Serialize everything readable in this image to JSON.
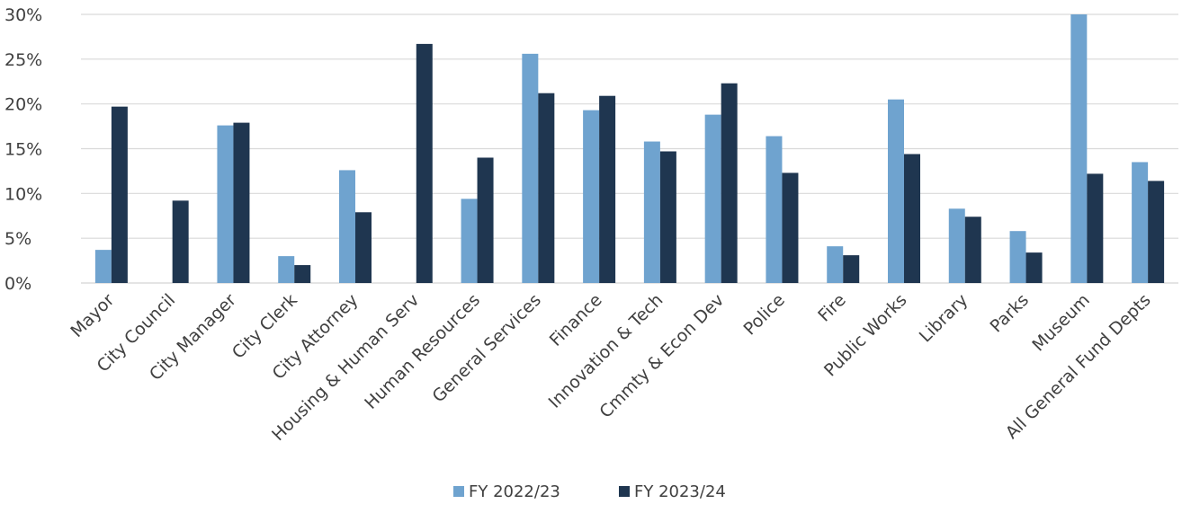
{
  "chart_data": {
    "type": "bar",
    "title": "",
    "xlabel": "",
    "ylabel": "",
    "ylim": [
      0,
      0.3
    ],
    "yticks": [
      "0%",
      "5%",
      "10%",
      "15%",
      "20%",
      "25%",
      "30%"
    ],
    "grid": true,
    "legend_position": "bottom",
    "categories": [
      "Mayor",
      "City Council",
      "City Manager",
      "City Clerk",
      "City Attorney",
      "Housing & Human Serv",
      "Human Resources",
      "General Services",
      "Finance",
      "Innovation & Tech",
      "Cmmty & Econ Dev",
      "Police",
      "Fire",
      "Public Works",
      "Library",
      "Parks",
      "Museum",
      "All General Fund Depts"
    ],
    "series": [
      {
        "name": "FY 2022/23",
        "color": "#6fa3cf",
        "values": [
          0.037,
          null,
          0.176,
          0.03,
          0.126,
          null,
          0.094,
          0.256,
          0.193,
          0.158,
          0.188,
          0.164,
          0.041,
          0.205,
          0.083,
          0.058,
          0.3,
          0.135
        ]
      },
      {
        "name": "FY 2023/24",
        "color": "#1f3650",
        "values": [
          0.197,
          0.092,
          0.179,
          0.02,
          0.079,
          0.267,
          0.14,
          0.212,
          0.209,
          0.147,
          0.223,
          0.123,
          0.031,
          0.144,
          0.074,
          0.034,
          0.122,
          0.114
        ]
      }
    ]
  }
}
